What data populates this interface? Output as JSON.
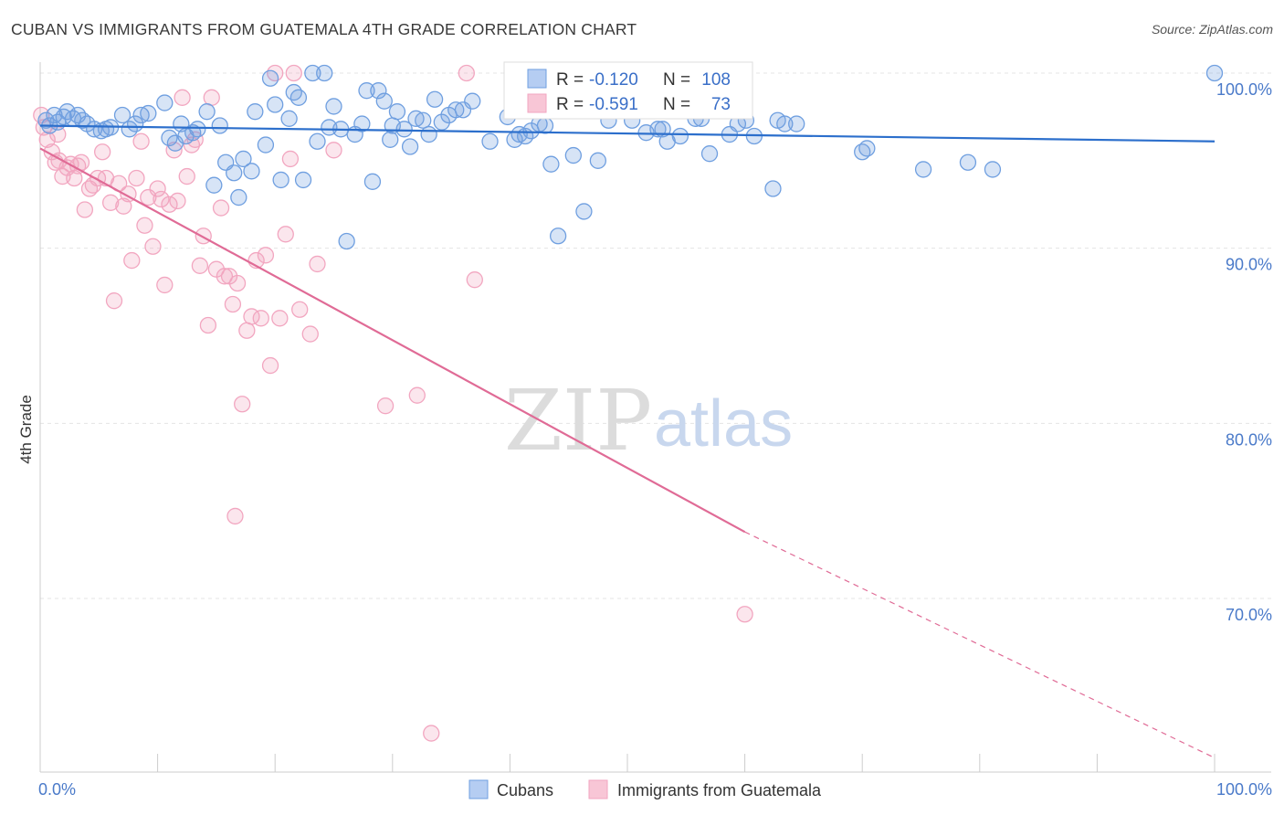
{
  "title": "CUBAN VS IMMIGRANTS FROM GUATEMALA 4TH GRADE CORRELATION CHART",
  "source": "Source: ZipAtlas.com",
  "chart_data": {
    "type": "scatter",
    "title": "CUBAN VS IMMIGRANTS FROM GUATEMALA 4TH GRADE CORRELATION CHART",
    "xlabel": "",
    "ylabel": "4th Grade",
    "xlim": [
      0,
      100
    ],
    "ylim": [
      60,
      101
    ],
    "x_tick_labels": [
      "0.0%",
      "100.0%"
    ],
    "y_ticks": [
      70,
      80,
      90,
      100
    ],
    "y_tick_labels": [
      "70.0%",
      "80.0%",
      "90.0%",
      "100.0%"
    ],
    "grid": true,
    "legend_position": "top-center",
    "colors": {
      "cubans": "#6f9fe0",
      "guatemala": "#f2a6c0",
      "cubans_line": "#2c6fcc",
      "guatemala_line": "#e06b96"
    },
    "stats": [
      {
        "r_label": "R =",
        "r": "-0.120",
        "n_label": "N =",
        "n": "108"
      },
      {
        "r_label": "R =",
        "r": "-0.591",
        "n_label": "N =",
        "n": "73"
      }
    ],
    "series": [
      {
        "name": "Cubans",
        "trend": {
          "x": [
            0,
            100
          ],
          "y": [
            97.0,
            96.1
          ]
        },
        "points": [
          [
            0.5,
            97.3
          ],
          [
            0.8,
            97.0
          ],
          [
            1.2,
            97.6
          ],
          [
            1.5,
            97.2
          ],
          [
            2.0,
            97.5
          ],
          [
            2.3,
            97.8
          ],
          [
            2.8,
            97.4
          ],
          [
            3.2,
            97.6
          ],
          [
            3.6,
            97.3
          ],
          [
            4.0,
            97.1
          ],
          [
            4.6,
            96.8
          ],
          [
            5.2,
            96.7
          ],
          [
            5.6,
            96.8
          ],
          [
            6.0,
            96.9
          ],
          [
            7.0,
            97.6
          ],
          [
            7.6,
            96.8
          ],
          [
            8.1,
            97.1
          ],
          [
            8.6,
            97.6
          ],
          [
            9.2,
            97.7
          ],
          [
            10.6,
            98.3
          ],
          [
            11.0,
            96.3
          ],
          [
            11.5,
            96.0
          ],
          [
            12.0,
            97.1
          ],
          [
            12.4,
            96.4
          ],
          [
            13.0,
            96.6
          ],
          [
            13.4,
            96.8
          ],
          [
            14.2,
            97.8
          ],
          [
            14.8,
            93.6
          ],
          [
            15.3,
            97.0
          ],
          [
            15.8,
            94.9
          ],
          [
            16.5,
            94.3
          ],
          [
            16.9,
            92.9
          ],
          [
            17.3,
            95.1
          ],
          [
            18.0,
            94.4
          ],
          [
            18.3,
            97.8
          ],
          [
            19.2,
            95.9
          ],
          [
            19.6,
            99.7
          ],
          [
            20.0,
            98.2
          ],
          [
            20.5,
            93.9
          ],
          [
            21.2,
            97.4
          ],
          [
            21.6,
            98.9
          ],
          [
            22.0,
            98.6
          ],
          [
            22.4,
            93.9
          ],
          [
            23.2,
            100.0
          ],
          [
            23.6,
            96.1
          ],
          [
            24.2,
            100.0
          ],
          [
            24.6,
            96.9
          ],
          [
            25.0,
            98.1
          ],
          [
            25.6,
            96.8
          ],
          [
            26.1,
            90.4
          ],
          [
            26.8,
            96.5
          ],
          [
            27.4,
            97.1
          ],
          [
            27.8,
            99.0
          ],
          [
            28.3,
            93.8
          ],
          [
            28.8,
            99.0
          ],
          [
            29.3,
            98.4
          ],
          [
            29.8,
            96.2
          ],
          [
            30.4,
            97.8
          ],
          [
            31.0,
            96.8
          ],
          [
            31.5,
            95.8
          ],
          [
            32.0,
            97.4
          ],
          [
            32.6,
            97.3
          ],
          [
            33.1,
            96.5
          ],
          [
            33.6,
            98.5
          ],
          [
            34.2,
            97.2
          ],
          [
            34.8,
            97.6
          ],
          [
            35.4,
            97.9
          ],
          [
            36.0,
            97.9
          ],
          [
            36.8,
            98.4
          ],
          [
            38.3,
            96.1
          ],
          [
            39.8,
            97.5
          ],
          [
            40.4,
            96.2
          ],
          [
            40.8,
            96.5
          ],
          [
            41.3,
            96.4
          ],
          [
            41.8,
            96.7
          ],
          [
            42.5,
            97.1
          ],
          [
            43.0,
            97.0
          ],
          [
            43.5,
            94.8
          ],
          [
            44.1,
            90.7
          ],
          [
            45.4,
            95.3
          ],
          [
            46.3,
            92.1
          ],
          [
            47.5,
            95.0
          ],
          [
            48.4,
            97.3
          ],
          [
            49.0,
            98.0
          ],
          [
            50.4,
            97.3
          ],
          [
            51.6,
            96.6
          ],
          [
            52.6,
            96.8
          ],
          [
            53.4,
            96.1
          ],
          [
            54.5,
            96.4
          ],
          [
            55.8,
            97.4
          ],
          [
            57.0,
            95.4
          ],
          [
            58.3,
            98.4
          ],
          [
            58.7,
            96.5
          ],
          [
            59.4,
            97.1
          ],
          [
            60.1,
            97.3
          ],
          [
            60.8,
            96.4
          ],
          [
            62.4,
            93.4
          ],
          [
            62.8,
            97.3
          ],
          [
            63.4,
            97.1
          ],
          [
            64.4,
            97.1
          ],
          [
            70.0,
            95.5
          ],
          [
            70.4,
            95.7
          ],
          [
            75.2,
            94.5
          ],
          [
            79.0,
            94.9
          ],
          [
            81.1,
            94.5
          ],
          [
            100.0,
            100.0
          ],
          [
            53.0,
            96.8
          ],
          [
            56.3,
            97.4
          ],
          [
            30.0,
            97.0
          ]
        ]
      },
      {
        "name": "Immigrants from Guatemala",
        "trend": {
          "x": [
            0,
            60
          ],
          "y": [
            95.7,
            73.8
          ]
        },
        "trend_dashed": {
          "x": [
            60,
            100
          ],
          "y": [
            73.8,
            60.9
          ]
        },
        "points": [
          [
            0.1,
            97.6
          ],
          [
            0.3,
            96.9
          ],
          [
            0.6,
            96.2
          ],
          [
            1.0,
            95.5
          ],
          [
            1.3,
            94.9
          ],
          [
            1.6,
            95.0
          ],
          [
            1.9,
            94.1
          ],
          [
            2.3,
            94.6
          ],
          [
            2.6,
            94.8
          ],
          [
            2.9,
            94.0
          ],
          [
            3.2,
            94.7
          ],
          [
            3.5,
            94.9
          ],
          [
            3.8,
            92.2
          ],
          [
            4.2,
            93.4
          ],
          [
            4.5,
            93.6
          ],
          [
            4.9,
            94.0
          ],
          [
            5.3,
            95.5
          ],
          [
            5.6,
            94.0
          ],
          [
            6.0,
            92.6
          ],
          [
            6.3,
            87.0
          ],
          [
            6.7,
            93.7
          ],
          [
            7.1,
            92.4
          ],
          [
            7.5,
            93.1
          ],
          [
            7.8,
            89.3
          ],
          [
            8.2,
            94.0
          ],
          [
            8.6,
            96.1
          ],
          [
            8.9,
            91.3
          ],
          [
            9.2,
            92.9
          ],
          [
            9.6,
            90.1
          ],
          [
            10.0,
            93.4
          ],
          [
            10.3,
            92.8
          ],
          [
            10.6,
            87.9
          ],
          [
            11.0,
            92.5
          ],
          [
            11.4,
            95.6
          ],
          [
            11.7,
            92.7
          ],
          [
            12.1,
            98.6
          ],
          [
            12.5,
            94.1
          ],
          [
            12.9,
            95.9
          ],
          [
            13.2,
            96.2
          ],
          [
            13.6,
            89.0
          ],
          [
            13.9,
            90.7
          ],
          [
            14.3,
            85.6
          ],
          [
            14.6,
            98.6
          ],
          [
            15.0,
            88.8
          ],
          [
            15.4,
            92.3
          ],
          [
            15.7,
            88.4
          ],
          [
            16.1,
            88.4
          ],
          [
            16.4,
            86.8
          ],
          [
            16.8,
            88.0
          ],
          [
            17.2,
            81.1
          ],
          [
            17.6,
            85.3
          ],
          [
            18.0,
            86.1
          ],
          [
            18.4,
            89.3
          ],
          [
            18.8,
            86.0
          ],
          [
            19.2,
            89.6
          ],
          [
            19.6,
            83.3
          ],
          [
            20.0,
            100.0
          ],
          [
            20.4,
            86.0
          ],
          [
            20.9,
            90.8
          ],
          [
            21.3,
            95.1
          ],
          [
            21.6,
            100.0
          ],
          [
            22.1,
            86.5
          ],
          [
            23.0,
            85.1
          ],
          [
            23.6,
            89.1
          ],
          [
            25.0,
            95.6
          ],
          [
            16.6,
            74.7
          ],
          [
            29.4,
            81.0
          ],
          [
            32.1,
            81.6
          ],
          [
            33.3,
            62.3
          ],
          [
            36.3,
            100.0
          ],
          [
            37.0,
            88.2
          ],
          [
            60.0,
            69.1
          ],
          [
            1.5,
            96.5
          ]
        ]
      }
    ]
  },
  "legend": {
    "items": [
      "Cubans",
      "Immigrants from Guatemala"
    ]
  },
  "watermark": {
    "part1": "ZIP",
    "part2": "atlas"
  }
}
